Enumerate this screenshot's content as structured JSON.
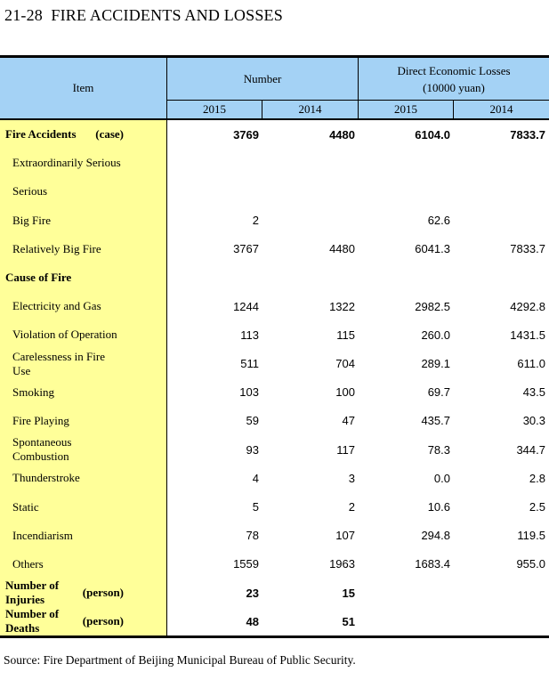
{
  "page": {
    "title": "21-28  FIRE ACCIDENTS AND LOSSES",
    "source": "Source: Fire Department of Beijing Municipal Bureau of Public Security."
  },
  "colors": {
    "header_bg": "#A4D2F5",
    "item_column_bg": "#FFFF99",
    "border": "#000000"
  },
  "table": {
    "header": {
      "item_label": "Item",
      "groups": [
        {
          "label": "Number",
          "line2": ""
        },
        {
          "label": "Direct Economic Losses",
          "line2": "(10000 yuan)"
        }
      ],
      "years": [
        "2015",
        "2014",
        "2015",
        "2014"
      ]
    },
    "columns": [
      "Item",
      "Number 2015",
      "Number 2014",
      "Direct Economic Losses 2015",
      "Direct Economic Losses 2014"
    ],
    "rows": [
      {
        "label": "Fire Accidents",
        "unit": "(case)",
        "bold": true,
        "indent": false,
        "values": [
          "3769",
          "4480",
          "6104.0",
          "7833.7"
        ]
      },
      {
        "label": "Extraordinarily Serious",
        "unit": "",
        "bold": false,
        "indent": true,
        "values": [
          "",
          "",
          "",
          ""
        ]
      },
      {
        "label": "Serious",
        "unit": "",
        "bold": false,
        "indent": true,
        "values": [
          "",
          "",
          "",
          ""
        ]
      },
      {
        "label": "Big Fire",
        "unit": "",
        "bold": false,
        "indent": true,
        "values": [
          "2",
          "",
          "62.6",
          ""
        ]
      },
      {
        "label": "Relatively Big Fire",
        "unit": "",
        "bold": false,
        "indent": true,
        "values": [
          "3767",
          "4480",
          "6041.3",
          "7833.7"
        ]
      },
      {
        "label": "Cause of Fire",
        "unit": "",
        "bold": true,
        "indent": false,
        "values": [
          "",
          "",
          "",
          ""
        ]
      },
      {
        "label": "Electricity and Gas",
        "unit": "",
        "bold": false,
        "indent": true,
        "values": [
          "1244",
          "1322",
          "2982.5",
          "4292.8"
        ]
      },
      {
        "label": "Violation of Operation",
        "unit": "",
        "bold": false,
        "indent": true,
        "values": [
          "113",
          "115",
          "260.0",
          "1431.5"
        ]
      },
      {
        "label": "Carelessness in Fire Use",
        "unit": "",
        "bold": false,
        "indent": true,
        "values": [
          "511",
          "704",
          "289.1",
          "611.0"
        ]
      },
      {
        "label": "Smoking",
        "unit": "",
        "bold": false,
        "indent": true,
        "values": [
          "103",
          "100",
          "69.7",
          "43.5"
        ]
      },
      {
        "label": "Fire  Playing",
        "unit": "",
        "bold": false,
        "indent": true,
        "values": [
          "59",
          "47",
          "435.7",
          "30.3"
        ]
      },
      {
        "label": "Spontaneous Combustion",
        "unit": "",
        "bold": false,
        "indent": true,
        "values": [
          "93",
          "117",
          "78.3",
          "344.7"
        ]
      },
      {
        "label": "Thunderstroke",
        "unit": "",
        "bold": false,
        "indent": true,
        "values": [
          "4",
          "3",
          "0.0",
          "2.8"
        ]
      },
      {
        "label": "Static",
        "unit": "",
        "bold": false,
        "indent": true,
        "values": [
          "5",
          "2",
          "10.6",
          "2.5"
        ]
      },
      {
        "label": "Incendiarism",
        "unit": "",
        "bold": false,
        "indent": true,
        "values": [
          "78",
          "107",
          "294.8",
          "119.5"
        ]
      },
      {
        "label": "Others",
        "unit": "",
        "bold": false,
        "indent": true,
        "values": [
          "1559",
          "1963",
          "1683.4",
          "955.0"
        ]
      },
      {
        "label": "Number of Injuries",
        "unit": "(person)",
        "bold": true,
        "indent": false,
        "values": [
          "23",
          "15",
          "",
          ""
        ]
      },
      {
        "label": "Number of Deaths",
        "unit": "(person)",
        "bold": true,
        "indent": false,
        "values": [
          "48",
          "51",
          "",
          ""
        ]
      }
    ]
  }
}
